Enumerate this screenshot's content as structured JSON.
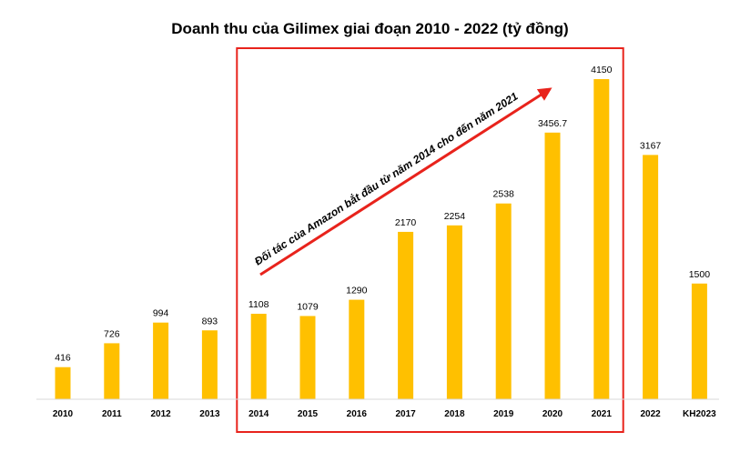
{
  "chart_data": {
    "type": "bar",
    "title": "Doanh thu của Gilimex giai đoạn 2010 - 2022 (tỷ đồng)",
    "categories": [
      "2010",
      "2011",
      "2012",
      "2013",
      "2014",
      "2015",
      "2016",
      "2017",
      "2018",
      "2019",
      "2020",
      "2021",
      "2022",
      "KH2023"
    ],
    "values": [
      416,
      726,
      994,
      893,
      1108,
      1079,
      1290,
      2170,
      2254,
      2538,
      3456.7,
      4150,
      3167,
      1500
    ],
    "value_labels": [
      "416",
      "726",
      "994",
      "893",
      "1108",
      "1079",
      "1290",
      "2170",
      "2254",
      "2538",
      "3456.7",
      "4150",
      "3167",
      "1500"
    ],
    "ylim": [
      0,
      4150
    ],
    "grid": false,
    "bar_color": "#FFC000",
    "annotation": {
      "text": "Đối tác của Amazon bắt đầu từ năm 2014 cho đến năm 2021",
      "color": "#000000",
      "arrow_color": "#E8231C",
      "highlight_box_color": "#E8231C",
      "highlight_range": [
        "2014",
        "2021"
      ]
    }
  }
}
